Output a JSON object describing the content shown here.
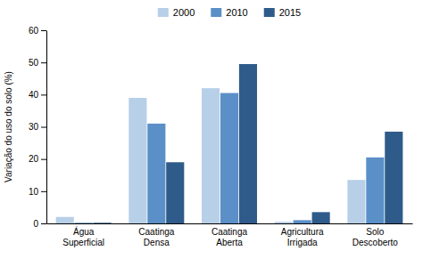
{
  "chart_data": {
    "type": "bar",
    "categories": [
      "Água\nSuperficial",
      "Caatinga\nDensa",
      "Caatinga\nAberta",
      "Agricultura\nIrrigada",
      "Solo\nDescoberto"
    ],
    "series": [
      {
        "name": "2000",
        "color": "#b8cfe8",
        "values": [
          2.0,
          39.0,
          42.0,
          0.5,
          13.5
        ]
      },
      {
        "name": "2010",
        "color": "#5b8fc7",
        "values": [
          0.2,
          31.0,
          40.5,
          1.0,
          20.5
        ]
      },
      {
        "name": "2015",
        "color": "#2e5b8a",
        "values": [
          0.2,
          19.0,
          49.5,
          3.5,
          28.5
        ]
      }
    ],
    "y_label": "Variação do uso do solo (%)",
    "ylim": [
      0,
      60
    ],
    "yticks": [
      0,
      10,
      20,
      30,
      40,
      50,
      60
    ],
    "grid": false,
    "legend": "top"
  }
}
